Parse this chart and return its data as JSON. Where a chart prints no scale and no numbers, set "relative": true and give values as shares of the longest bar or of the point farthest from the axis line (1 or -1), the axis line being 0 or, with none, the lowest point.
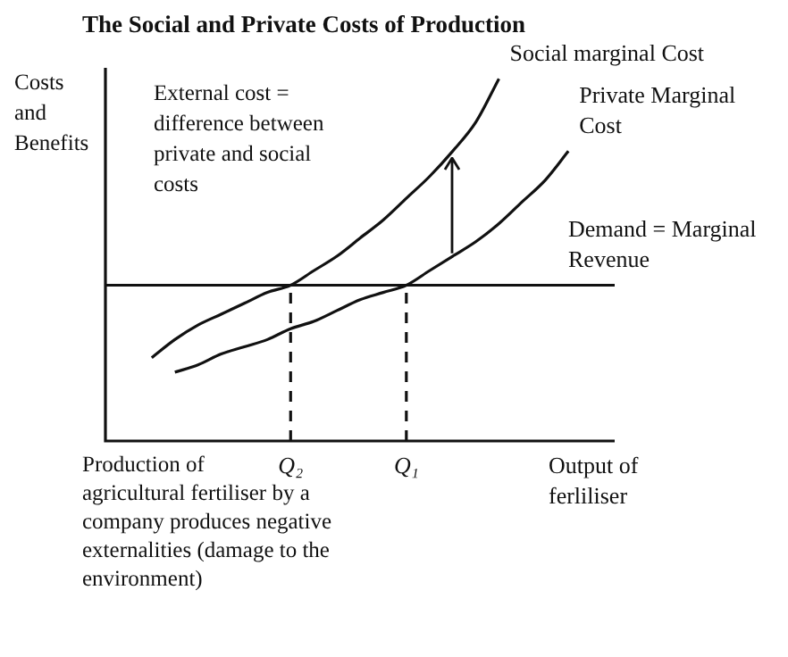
{
  "chart_data": {
    "type": "line",
    "title": "The Social and Private Costs of Production",
    "xlabel": "Output of ferliliser",
    "ylabel": "Costs and Benefits",
    "relative": true,
    "categories": [
      null,
      null,
      null,
      null,
      null,
      null,
      null,
      null,
      "Q₂",
      null,
      null,
      null,
      null,
      "Q₁",
      null,
      null,
      null,
      null,
      null,
      null,
      null,
      null,
      null
    ],
    "series": [
      {
        "name": "Social marginal Cost",
        "color": "#111111",
        "values": [
          null,
          null,
          0.23,
          0.28,
          0.32,
          0.35,
          0.38,
          0.41,
          0.43,
          0.47,
          0.51,
          0.56,
          0.61,
          0.67,
          0.73,
          0.8,
          0.88,
          1,
          null,
          null,
          null,
          null,
          null
        ]
      },
      {
        "name": "Private Marginal Cost",
        "color": "#111111",
        "values": [
          null,
          null,
          null,
          0.19,
          0.21,
          0.24,
          0.26,
          0.28,
          0.31,
          0.33,
          0.36,
          0.39,
          0.41,
          0.43,
          0.47,
          0.51,
          0.55,
          0.6,
          0.66,
          0.72,
          0.8,
          null,
          null
        ]
      }
    ],
    "ref_lines": [
      {
        "axis": "y",
        "value": 0.43,
        "label": "Demand = Marginal Revenue"
      },
      {
        "axis": "x",
        "value": "Q₂",
        "line_style": "dashed"
      },
      {
        "axis": "x",
        "value": "Q₁",
        "line_style": "dashed"
      }
    ],
    "annotations": [
      "External cost = difference between private and social costs",
      "Production of agricultural fertiliser by a company produces negative externalities (damage to the environment)"
    ],
    "marker": "none",
    "line_style": "solid"
  }
}
